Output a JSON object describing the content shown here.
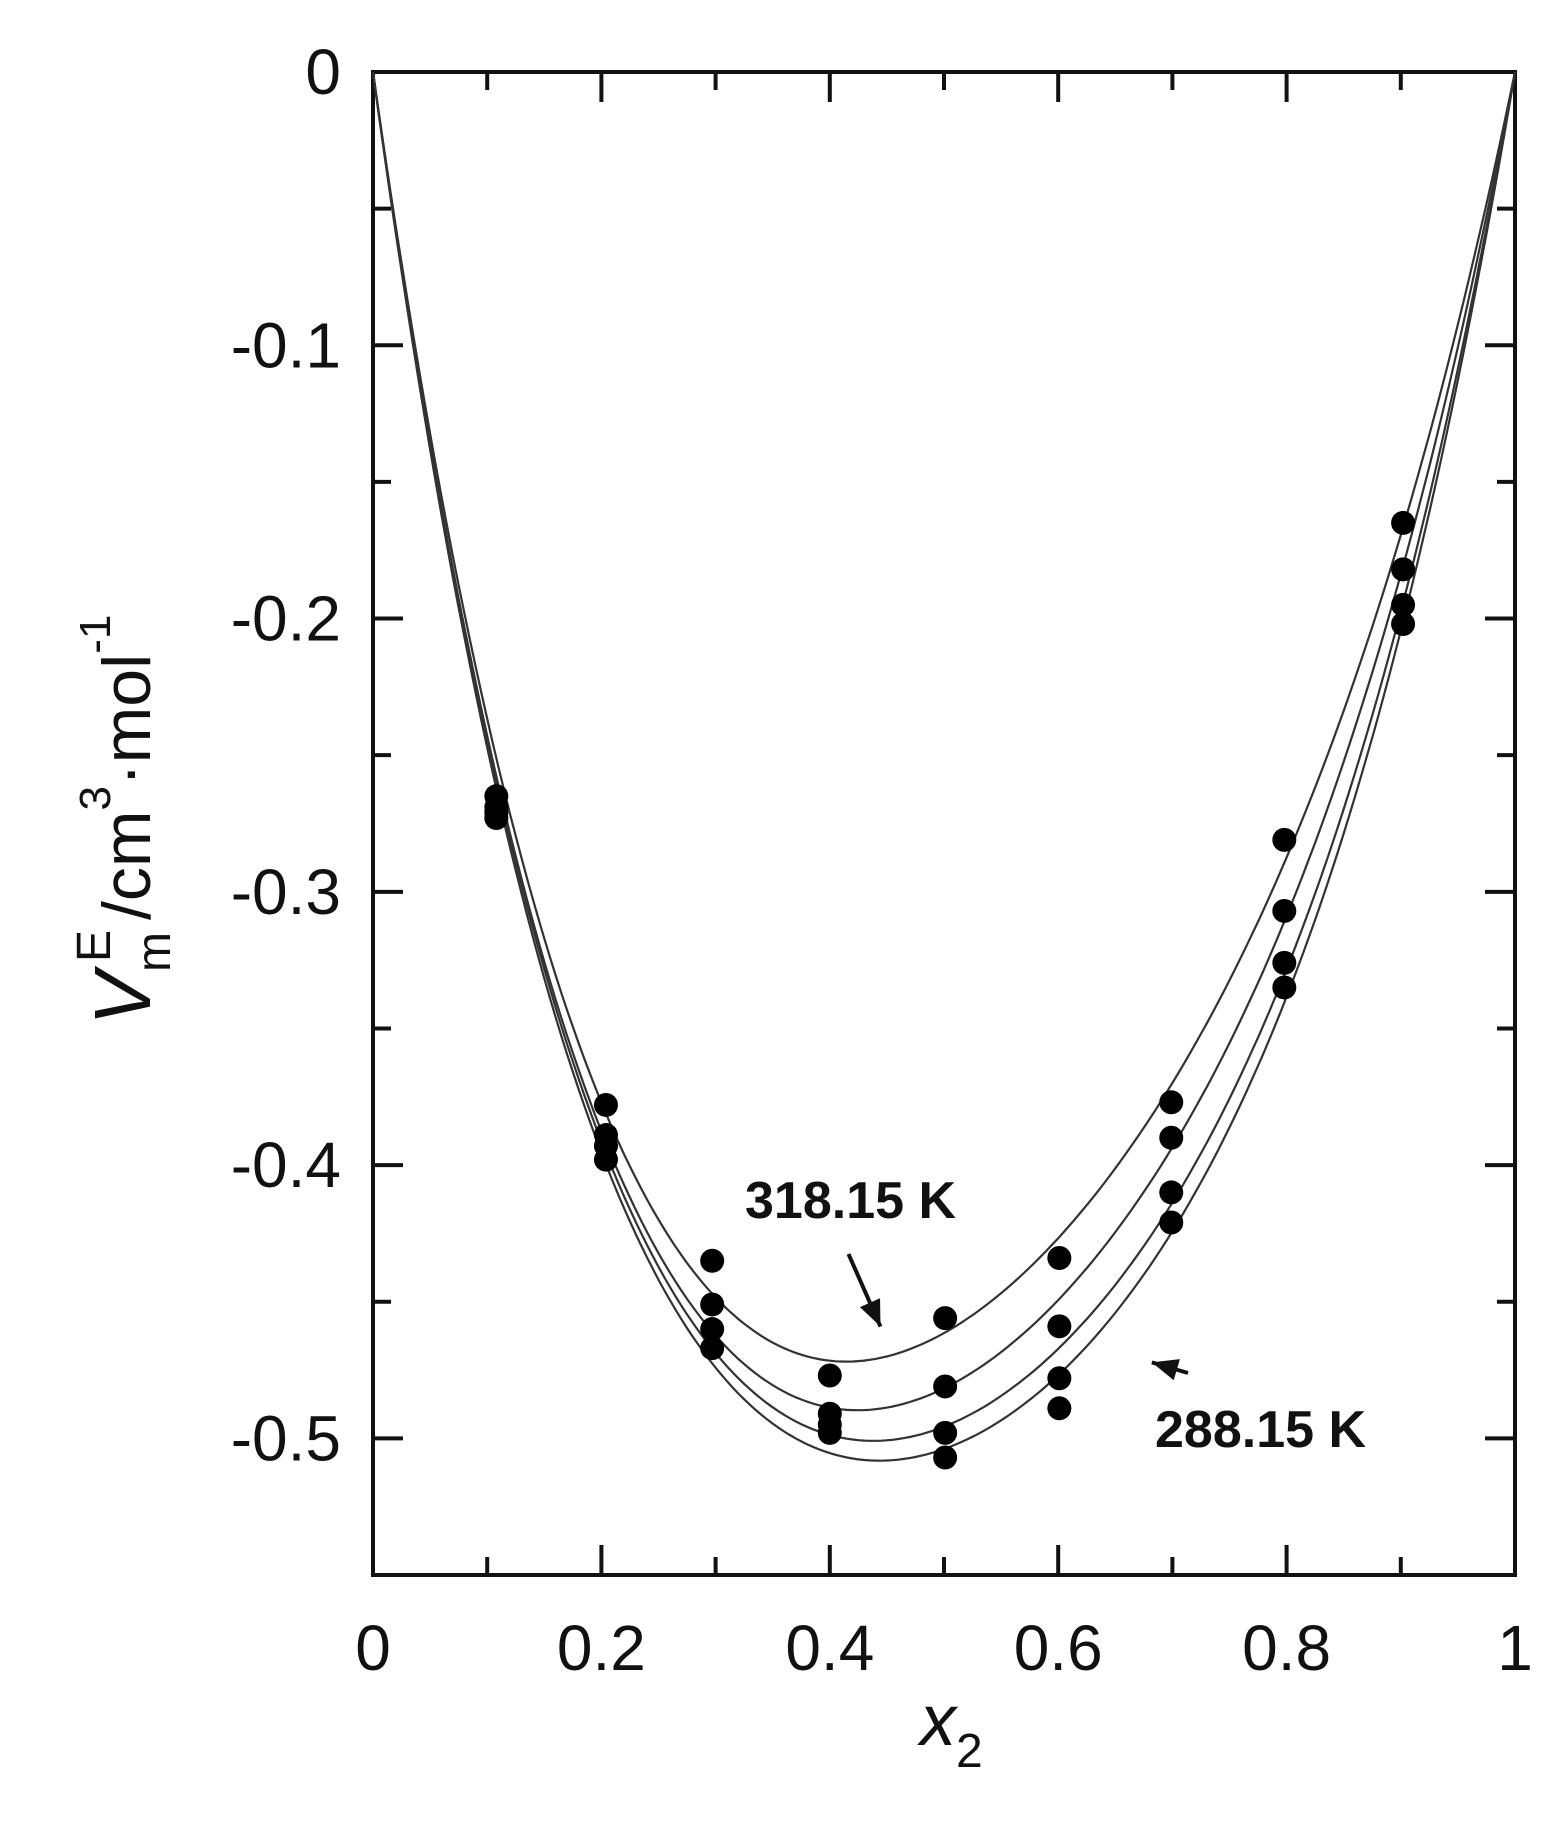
{
  "chart_data": {
    "type": "scatter",
    "xlim": [
      0,
      1
    ],
    "ylim": [
      -0.55,
      0
    ],
    "x_ticks": [
      "0",
      "0.2",
      "0.4",
      "0.6",
      "0.8",
      "1"
    ],
    "y_ticks": [
      "0",
      "-0.1",
      "-0.2",
      "-0.3",
      "-0.4",
      "-0.5"
    ],
    "x_tick_values": [
      0,
      0.2,
      0.4,
      0.6,
      0.8,
      1
    ],
    "y_tick_values": [
      0,
      -0.1,
      -0.2,
      -0.3,
      -0.4,
      -0.5
    ],
    "xlabel": {
      "main": "x",
      "sub": "2"
    },
    "ylabel": {
      "main": "V",
      "sup": "E",
      "sub": "m",
      "unit_a": "/cm",
      "unit_sup_a": "3",
      "unit_b": "·mol",
      "unit_sup_b": "-1"
    },
    "grid": false,
    "marker_color": "#000000",
    "line_color": "#333333",
    "series": [
      {
        "x": [
          0.108,
          0.204,
          0.297,
          0.4,
          0.501,
          0.601,
          0.699,
          0.798,
          0.902
        ],
        "y": [
          -0.265,
          -0.378,
          -0.435,
          -0.477,
          -0.456,
          -0.434,
          -0.377,
          -0.281,
          -0.165
        ]
      },
      {
        "x": [
          0.108,
          0.204,
          0.297,
          0.4,
          0.501,
          0.601,
          0.699,
          0.798,
          0.902
        ],
        "y": [
          -0.269,
          -0.389,
          -0.451,
          -0.491,
          -0.481,
          -0.459,
          -0.39,
          -0.307,
          -0.182
        ]
      },
      {
        "x": [
          0.108,
          0.204,
          0.297,
          0.4,
          0.501,
          0.601,
          0.699,
          0.798,
          0.902
        ],
        "y": [
          -0.271,
          -0.393,
          -0.46,
          -0.495,
          -0.498,
          -0.478,
          -0.41,
          -0.326,
          -0.195
        ]
      },
      {
        "x": [
          0.108,
          0.204,
          0.297,
          0.4,
          0.501,
          0.601,
          0.699,
          0.798,
          0.902
        ],
        "y": [
          -0.273,
          -0.398,
          -0.467,
          -0.498,
          -0.507,
          -0.489,
          -0.421,
          -0.335,
          -0.202
        ]
      }
    ],
    "annotations": [
      {
        "text": "318.15 K",
        "x": 0.44,
        "y": -0.462
      },
      {
        "text": "288.15 K",
        "x": 0.675,
        "y": -0.47
      }
    ]
  }
}
